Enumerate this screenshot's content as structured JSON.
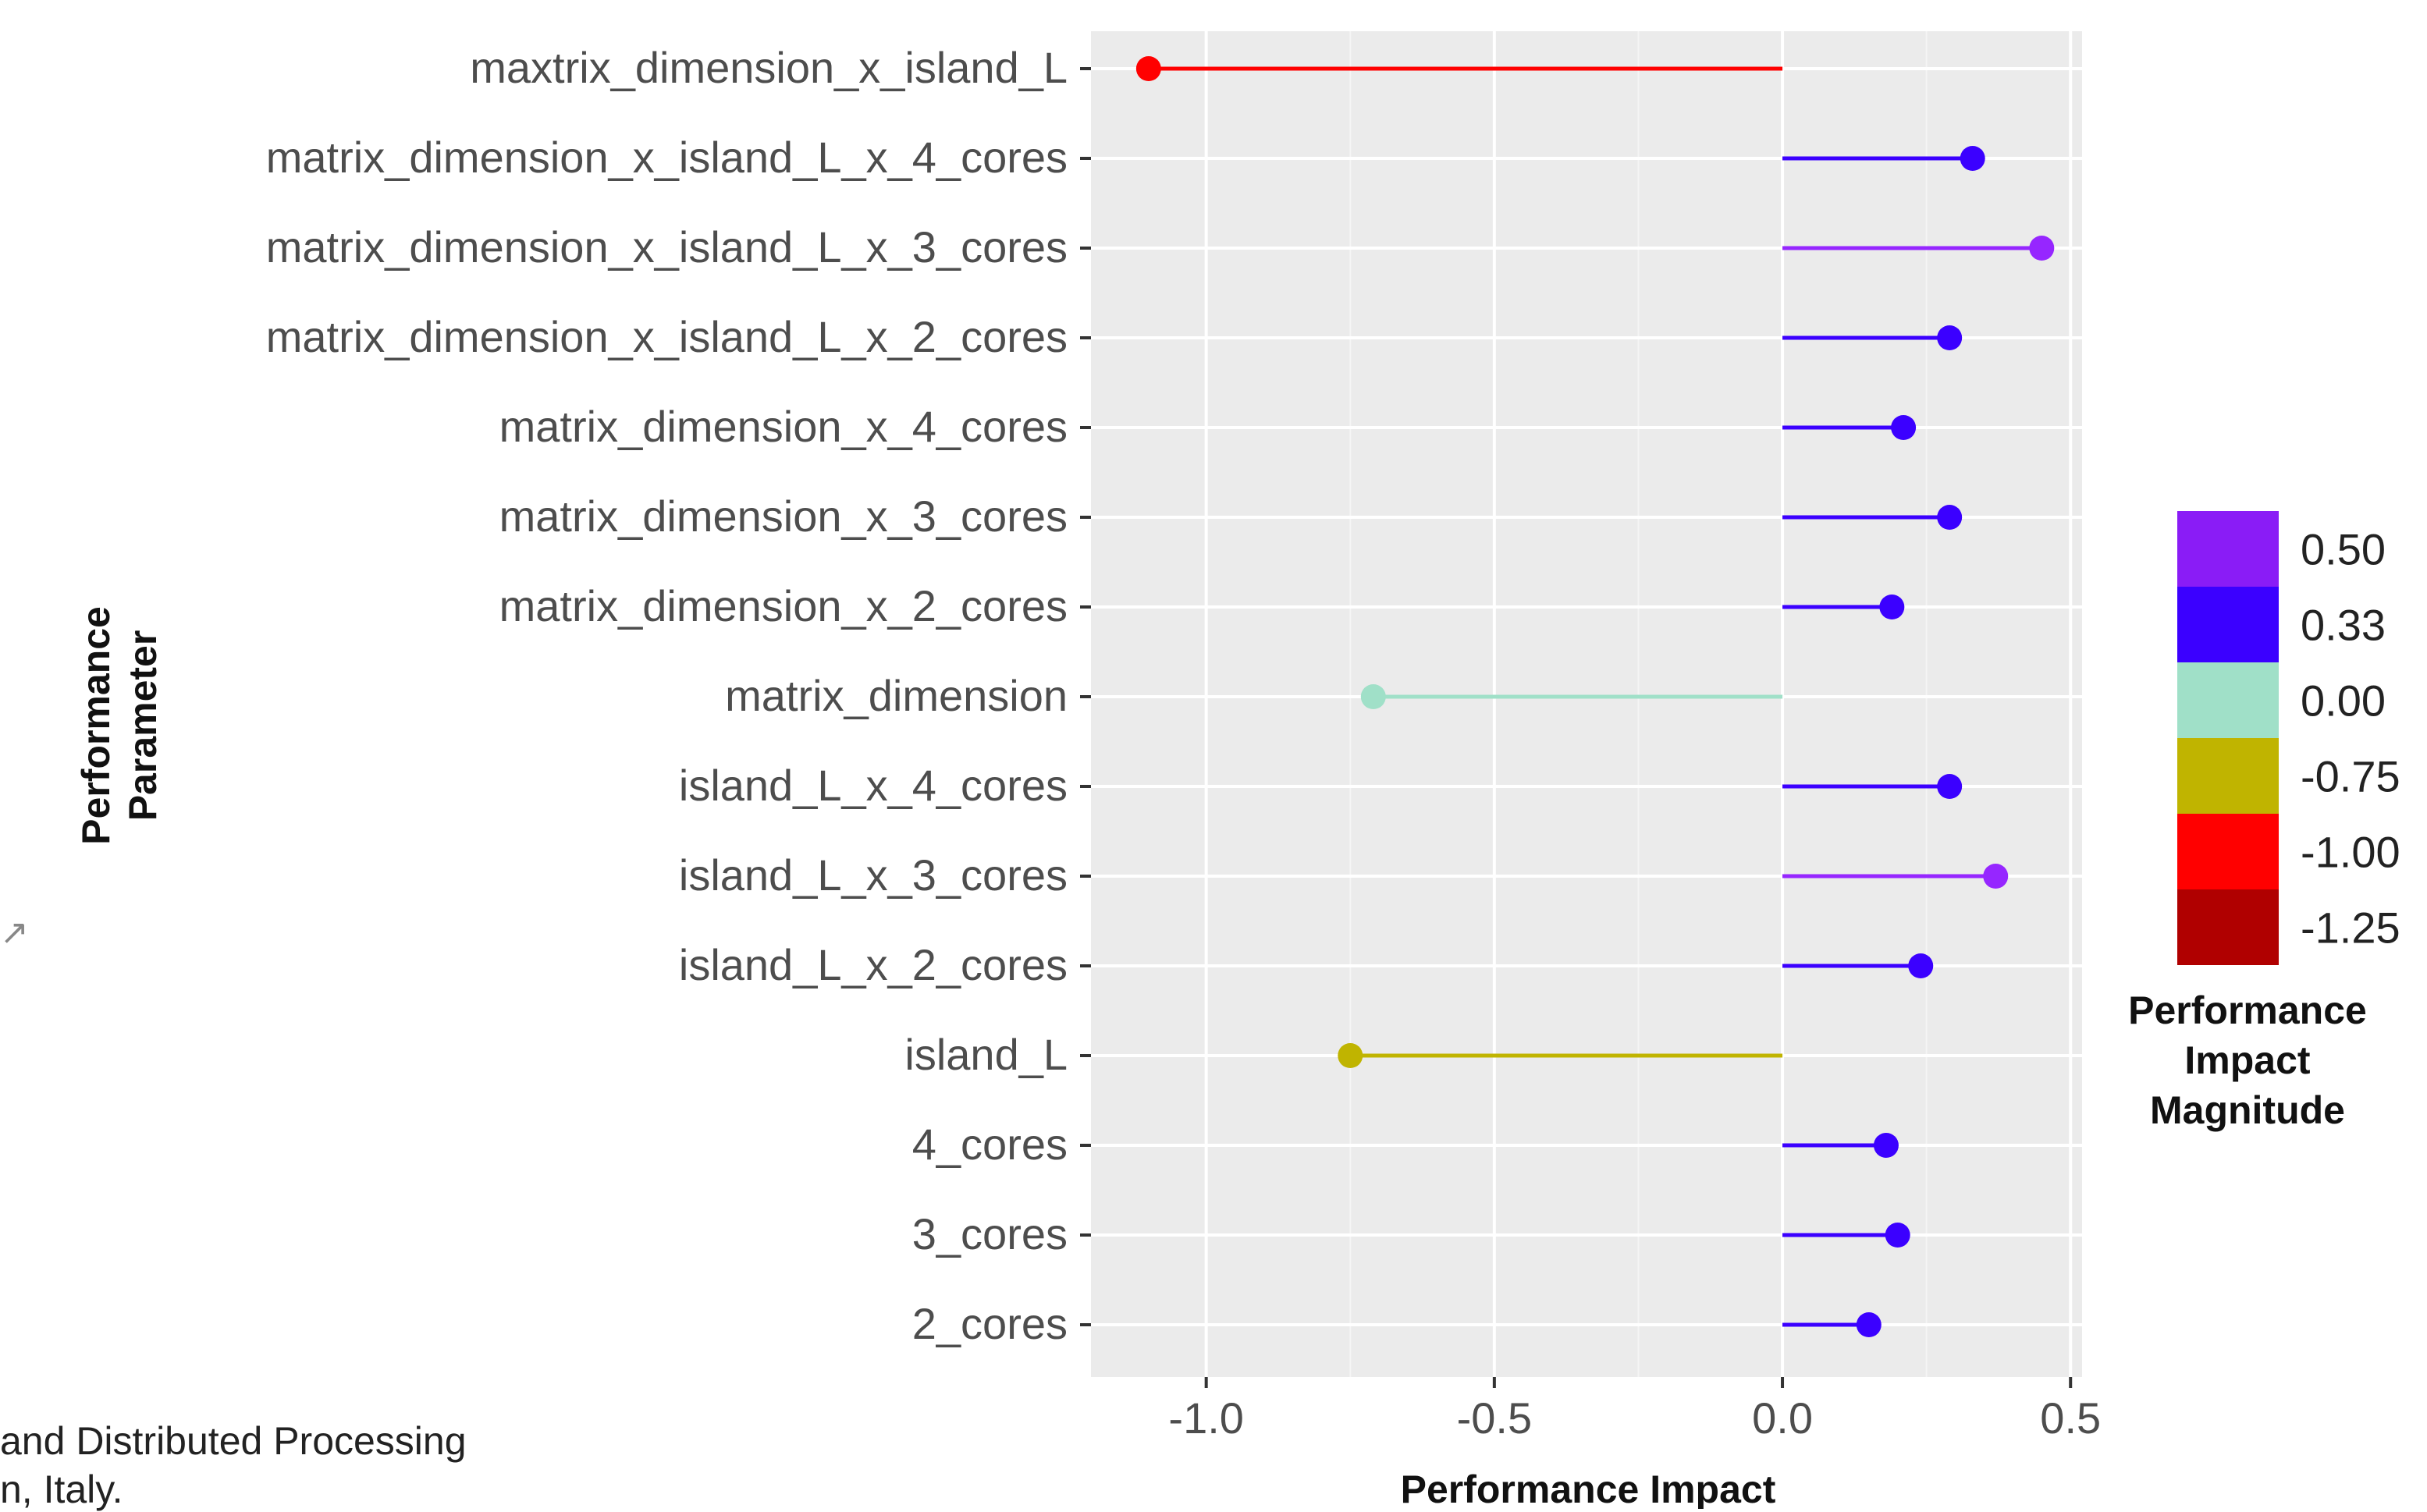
{
  "chart_data": {
    "type": "lollipop",
    "orientation": "horizontal",
    "xlabel": "Performance Impact",
    "ylabel": "Performance\nParameter",
    "xlim": [
      -1.2,
      0.52
    ],
    "xticks": [
      -1.0,
      -0.5,
      0.0,
      0.5
    ],
    "xtick_labels": [
      "-1.0",
      "-0.5",
      "0.0",
      "0.5"
    ],
    "grid": true,
    "categories": [
      "maxtrix_dimension_x_island_L",
      "matrix_dimension_x_island_L_x_4_cores",
      "matrix_dimension_x_island_L_x_3_cores",
      "matrix_dimension_x_island_L_x_2_cores",
      "matrix_dimension_x_4_cores",
      "matrix_dimension_x_3_cores",
      "matrix_dimension_x_2_cores",
      "matrix_dimension",
      "island_L_x_4_cores",
      "island_L_x_3_cores",
      "island_L_x_2_cores",
      "island_L",
      "4_cores",
      "3_cores",
      "2_cores"
    ],
    "values": [
      -1.1,
      0.33,
      0.45,
      0.29,
      0.21,
      0.29,
      0.19,
      -0.71,
      0.29,
      0.37,
      0.24,
      -0.75,
      0.18,
      0.2,
      0.15
    ],
    "point_colors": [
      "#ff0000",
      "#3b00ff",
      "#9626ff",
      "#3b00ff",
      "#3b00ff",
      "#3b00ff",
      "#3b00ff",
      "#a0e0c8",
      "#3b00ff",
      "#9626ff",
      "#3b00ff",
      "#c0b400",
      "#3b00ff",
      "#3b00ff",
      "#3b00ff"
    ],
    "legend": {
      "title": "Performance\nImpact\nMagnitude",
      "placement": "right",
      "entries": [
        {
          "label": "0.50",
          "color": "#8a1cf6"
        },
        {
          "label": "0.33",
          "color": "#3b00ff"
        },
        {
          "label": "0.00",
          "color": "#a0e0c8"
        },
        {
          "label": "-0.75",
          "color": "#c0b400"
        },
        {
          "label": "-1.00",
          "color": "#ff0000"
        },
        {
          "label": "-1.25",
          "color": "#b00000"
        }
      ]
    }
  },
  "footer": {
    "line1": "and Distributed Processing",
    "line2": "n, Italy."
  },
  "stray_mark": "↗"
}
